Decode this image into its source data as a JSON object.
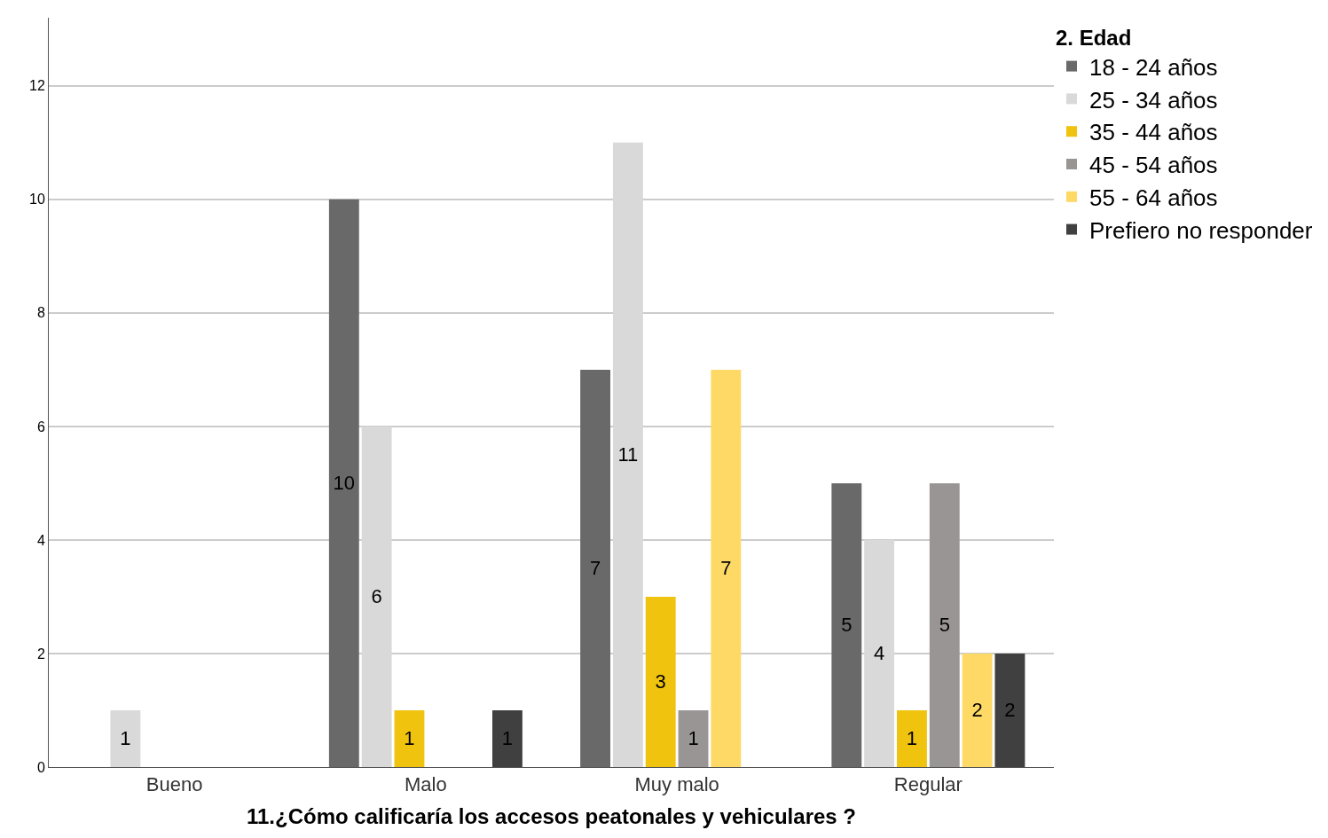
{
  "chart_data": {
    "type": "bar",
    "xlabel": "11.¿Cómo calificaría los accesos peatonales y vehiculares ?",
    "legend_title": "2. Edad",
    "categories": [
      "Bueno",
      "Malo",
      "Muy malo",
      "Regular"
    ],
    "series": [
      {
        "name": "18 - 24 años",
        "color": "#696969",
        "values": [
          null,
          10,
          7,
          5
        ]
      },
      {
        "name": "25 - 34 años",
        "color": "#d9d9d9",
        "values": [
          1,
          6,
          11,
          4
        ]
      },
      {
        "name": "35 - 44 años",
        "color": "#f0c30f",
        "values": [
          null,
          1,
          3,
          1
        ]
      },
      {
        "name": "45 - 54 años",
        "color": "#999595",
        "values": [
          null,
          null,
          1,
          5
        ]
      },
      {
        "name": "55 - 64 años",
        "color": "#fed966",
        "values": [
          null,
          null,
          7,
          2
        ]
      },
      {
        "name": "Prefiero no responder",
        "color": "#404040",
        "values": [
          null,
          1,
          null,
          2
        ]
      }
    ],
    "ylim": [
      0,
      13.2
    ],
    "yticks": [
      0,
      2,
      4,
      6,
      8,
      10,
      12
    ],
    "grid": "y",
    "legend": "top right",
    "data_labels": true
  }
}
